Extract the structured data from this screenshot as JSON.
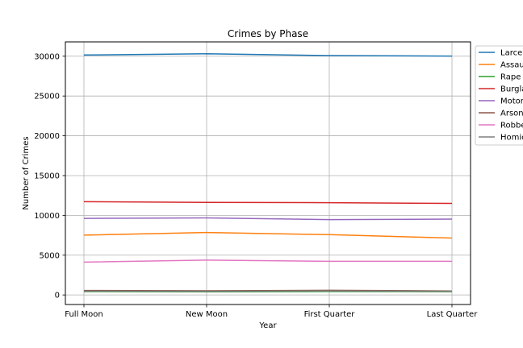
{
  "chart_data": {
    "type": "line",
    "title": "Crimes by Phase",
    "xlabel": "Year",
    "ylabel": "Number of Crimes",
    "categories": [
      "Full Moon",
      "New Moon",
      "First Quarter",
      "Last Quarter"
    ],
    "ylim": [
      -1200,
      31800
    ],
    "yticks": [
      0,
      5000,
      10000,
      15000,
      20000,
      25000,
      30000
    ],
    "ytick_labels": [
      "0",
      "5000",
      "10000",
      "15000",
      "20000",
      "25000",
      "30000"
    ],
    "grid": true,
    "legend_position": "top-right",
    "series": [
      {
        "name": "Larce",
        "color": "#1f77b4",
        "values": [
          30150,
          30300,
          30080,
          30020
        ]
      },
      {
        "name": "Assau",
        "color": "#ff7f0e",
        "values": [
          7520,
          7850,
          7580,
          7150
        ]
      },
      {
        "name": "Rape",
        "color": "#2ca02c",
        "values": [
          420,
          400,
          430,
          410
        ]
      },
      {
        "name": "Burgla",
        "color": "#d62728",
        "values": [
          11720,
          11630,
          11600,
          11500
        ]
      },
      {
        "name": "Motor",
        "color": "#9467bd",
        "values": [
          9620,
          9680,
          9470,
          9530
        ]
      },
      {
        "name": "Arson",
        "color": "#8c564b",
        "values": [
          560,
          520,
          580,
          500
        ]
      },
      {
        "name": "Robbe",
        "color": "#e377c2",
        "values": [
          4120,
          4380,
          4230,
          4230
        ]
      },
      {
        "name": "Homic",
        "color": "#7f7f7f",
        "values": [
          470,
          450,
          500,
          460
        ]
      }
    ]
  }
}
